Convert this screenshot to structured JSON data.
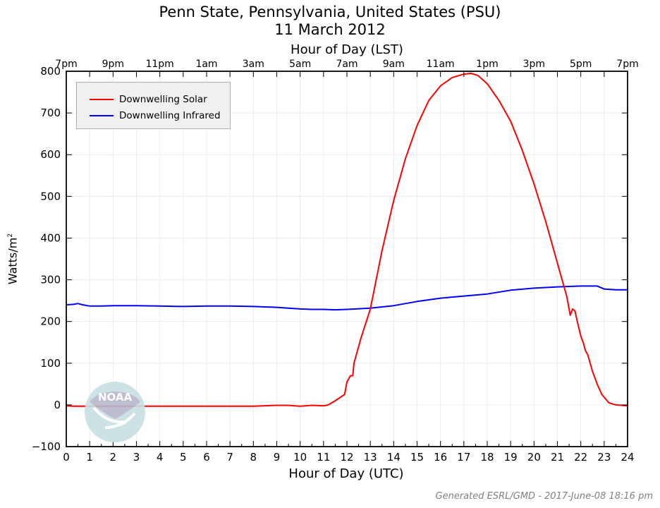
{
  "title": {
    "line1": "Penn State, Pennsylvania, United States (PSU)",
    "line2": "11 March 2012"
  },
  "axes": {
    "top_label": "Hour of Day (LST)",
    "bottom_label": "Hour of Day (UTC)",
    "y_label": "Watts/m",
    "y_label_sup": "2",
    "top_ticks": [
      "7pm",
      "9pm",
      "11pm",
      "1am",
      "3am",
      "5am",
      "7am",
      "9am",
      "11am",
      "1pm",
      "3pm",
      "5pm",
      "7pm"
    ],
    "bottom_ticks": [
      "0",
      "1",
      "2",
      "3",
      "4",
      "5",
      "6",
      "7",
      "8",
      "9",
      "10",
      "11",
      "12",
      "13",
      "14",
      "15",
      "16",
      "17",
      "18",
      "19",
      "20",
      "21",
      "22",
      "23",
      "24"
    ],
    "y_ticks": [
      "800",
      "700",
      "600",
      "500",
      "400",
      "300",
      "200",
      "100",
      "0",
      "−100"
    ]
  },
  "legend": {
    "items": [
      {
        "label": "Downwelling Solar",
        "color": "#ff0000"
      },
      {
        "label": "Downwelling Infrared",
        "color": "#0000ff"
      }
    ]
  },
  "logo": {
    "text": "NOAA"
  },
  "footer": "Generated ESRL/GMD - 2017-June-08 18:16 pm",
  "chart_data": {
    "type": "line",
    "title": "Penn State, Pennsylvania, United States (PSU) — 11 March 2012",
    "xlabel": "Hour of Day (UTC)",
    "x2label": "Hour of Day (LST)",
    "ylabel": "Watts/m²",
    "xlim": [
      0,
      24
    ],
    "ylim": [
      -100,
      800
    ],
    "grid": true,
    "legend_position": "upper left",
    "series": [
      {
        "name": "Downwelling Solar",
        "color": "#ff0000",
        "x": [
          0,
          0.3,
          1,
          2,
          3,
          4,
          5,
          6,
          7,
          8,
          8.5,
          9,
          9.5,
          10,
          10.5,
          11,
          11.2,
          11.5,
          11.9,
          12.0,
          12.15,
          12.25,
          12.3,
          12.6,
          13,
          13.5,
          14,
          14.5,
          15,
          15.5,
          16,
          16.5,
          17,
          17.3,
          17.6,
          18,
          18.5,
          19,
          19.5,
          20,
          20.5,
          21,
          21.4,
          21.55,
          21.65,
          21.75,
          21.85,
          22,
          22.1,
          22.2,
          22.3,
          22.5,
          22.7,
          22.9,
          23.2,
          23.5,
          24
        ],
        "y": [
          -2,
          -3,
          -3,
          -3,
          -3,
          -3,
          -3,
          -3,
          -3,
          -3,
          -2,
          -1,
          -1,
          -3,
          -1,
          -2,
          0,
          10,
          25,
          55,
          70,
          70,
          100,
          160,
          230,
          370,
          490,
          590,
          670,
          730,
          765,
          785,
          793,
          795,
          790,
          770,
          730,
          680,
          610,
          530,
          440,
          340,
          260,
          215,
          230,
          225,
          200,
          165,
          150,
          130,
          120,
          80,
          50,
          25,
          5,
          0,
          -2
        ]
      },
      {
        "name": "Downwelling Infrared",
        "color": "#0000ff",
        "x": [
          0,
          0.3,
          0.5,
          0.7,
          1,
          1.5,
          2,
          3,
          4,
          5,
          6,
          7,
          8,
          9,
          9.5,
          10,
          10.5,
          11,
          11.5,
          12,
          13,
          14,
          15,
          16,
          17,
          18,
          19,
          20,
          21,
          22,
          22.7,
          23,
          23.5,
          24
        ],
        "y": [
          240,
          241,
          243,
          240,
          237,
          237,
          238,
          238,
          237,
          236,
          237,
          237,
          236,
          234,
          232,
          230,
          229,
          229,
          228,
          229,
          232,
          238,
          248,
          256,
          261,
          266,
          275,
          280,
          283,
          285,
          285,
          278,
          276,
          276
        ]
      }
    ]
  }
}
